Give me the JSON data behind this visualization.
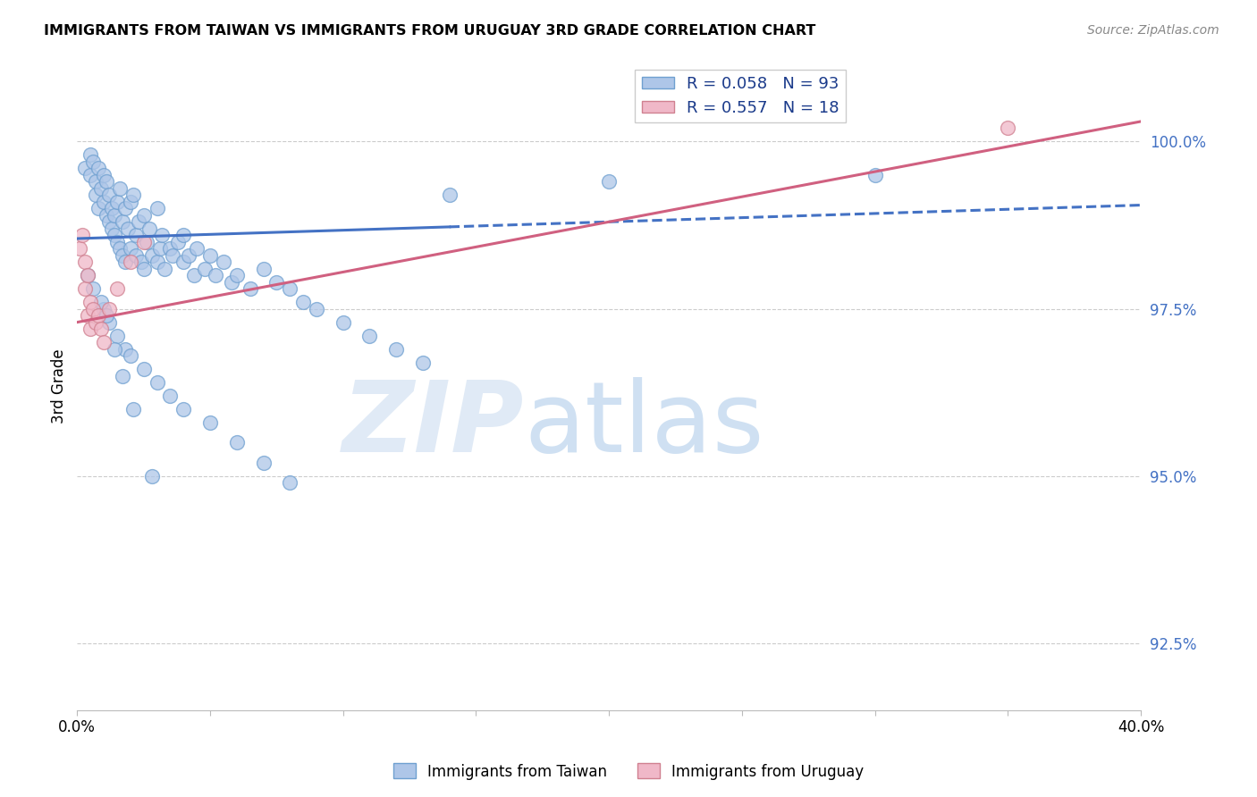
{
  "title": "IMMIGRANTS FROM TAIWAN VS IMMIGRANTS FROM URUGUAY 3RD GRADE CORRELATION CHART",
  "source": "Source: ZipAtlas.com",
  "ylabel": "3rd Grade",
  "xlim": [
    0.0,
    40.0
  ],
  "ylim": [
    91.5,
    101.2
  ],
  "yticks": [
    92.5,
    95.0,
    97.5,
    100.0
  ],
  "ytick_labels": [
    "92.5%",
    "95.0%",
    "97.5%",
    "100.0%"
  ],
  "xticks": [
    0.0,
    5.0,
    10.0,
    15.0,
    20.0,
    25.0,
    30.0,
    35.0,
    40.0
  ],
  "R_taiwan": 0.058,
  "N_taiwan": 93,
  "R_uruguay": 0.557,
  "N_uruguay": 18,
  "taiwan_color": "#aec6e8",
  "taiwan_edge_color": "#6fa0d0",
  "taiwan_line_color": "#4472c4",
  "uruguay_color": "#f0b8c8",
  "uruguay_edge_color": "#d08090",
  "uruguay_line_color": "#d06080",
  "taiwan_line_x0": 0.0,
  "taiwan_line_y0": 98.55,
  "taiwan_line_x1": 40.0,
  "taiwan_line_y1": 99.05,
  "taiwan_solid_end_x": 14.0,
  "uruguay_line_x0": 0.0,
  "uruguay_line_y0": 97.3,
  "uruguay_line_x1": 40.0,
  "uruguay_line_y1": 100.3,
  "taiwan_scatter_x": [
    0.3,
    0.5,
    0.5,
    0.6,
    0.7,
    0.7,
    0.8,
    0.8,
    0.9,
    1.0,
    1.0,
    1.1,
    1.1,
    1.2,
    1.2,
    1.3,
    1.3,
    1.4,
    1.4,
    1.5,
    1.5,
    1.6,
    1.6,
    1.7,
    1.7,
    1.8,
    1.8,
    1.9,
    2.0,
    2.0,
    2.1,
    2.2,
    2.2,
    2.3,
    2.4,
    2.5,
    2.5,
    2.6,
    2.7,
    2.8,
    3.0,
    3.0,
    3.1,
    3.2,
    3.3,
    3.5,
    3.6,
    3.8,
    4.0,
    4.0,
    4.2,
    4.4,
    4.5,
    4.8,
    5.0,
    5.2,
    5.5,
    5.8,
    6.0,
    6.5,
    7.0,
    7.5,
    8.0,
    8.5,
    9.0,
    10.0,
    11.0,
    12.0,
    13.0,
    14.0,
    1.0,
    1.2,
    1.5,
    1.8,
    2.0,
    2.5,
    3.0,
    3.5,
    4.0,
    5.0,
    6.0,
    7.0,
    8.0,
    20.0,
    30.0,
    0.4,
    0.6,
    0.9,
    1.1,
    1.4,
    1.7,
    2.1,
    2.8
  ],
  "taiwan_scatter_y": [
    99.6,
    99.8,
    99.5,
    99.7,
    99.4,
    99.2,
    99.6,
    99.0,
    99.3,
    99.5,
    99.1,
    99.4,
    98.9,
    99.2,
    98.8,
    99.0,
    98.7,
    98.9,
    98.6,
    99.1,
    98.5,
    99.3,
    98.4,
    98.8,
    98.3,
    99.0,
    98.2,
    98.7,
    99.1,
    98.4,
    99.2,
    98.6,
    98.3,
    98.8,
    98.2,
    98.9,
    98.1,
    98.5,
    98.7,
    98.3,
    99.0,
    98.2,
    98.4,
    98.6,
    98.1,
    98.4,
    98.3,
    98.5,
    98.2,
    98.6,
    98.3,
    98.0,
    98.4,
    98.1,
    98.3,
    98.0,
    98.2,
    97.9,
    98.0,
    97.8,
    98.1,
    97.9,
    97.8,
    97.6,
    97.5,
    97.3,
    97.1,
    96.9,
    96.7,
    99.2,
    97.5,
    97.3,
    97.1,
    96.9,
    96.8,
    96.6,
    96.4,
    96.2,
    96.0,
    95.8,
    95.5,
    95.2,
    94.9,
    99.4,
    99.5,
    98.0,
    97.8,
    97.6,
    97.4,
    96.9,
    96.5,
    96.0,
    95.0
  ],
  "uruguay_scatter_x": [
    0.1,
    0.2,
    0.3,
    0.3,
    0.4,
    0.4,
    0.5,
    0.5,
    0.6,
    0.7,
    0.8,
    0.9,
    1.0,
    1.2,
    1.5,
    2.0,
    2.5,
    35.0
  ],
  "uruguay_scatter_y": [
    98.4,
    98.6,
    98.2,
    97.8,
    98.0,
    97.4,
    97.6,
    97.2,
    97.5,
    97.3,
    97.4,
    97.2,
    97.0,
    97.5,
    97.8,
    98.2,
    98.5,
    100.2
  ]
}
